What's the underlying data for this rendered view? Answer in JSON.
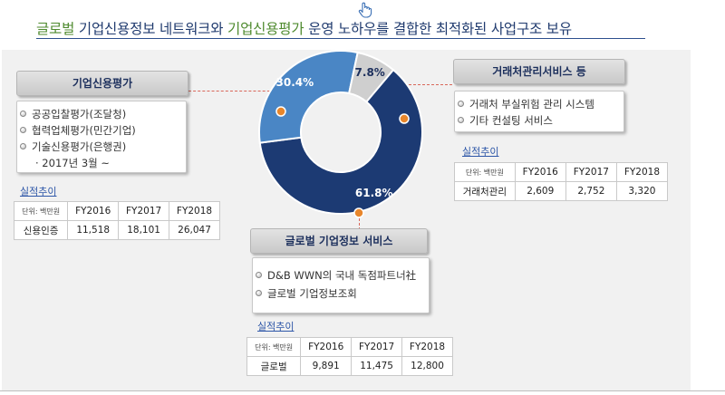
{
  "header": {
    "part1": "글로벌",
    "part2": " 기업신용정보 네트워크와 ",
    "part3": "기업신용평가",
    "part4": " 운영 노하우를 결합한 최적화된 사업구조 보유"
  },
  "colors": {
    "slice_credit": "#1c3a73",
    "slice_global": "#4a86c5",
    "slice_trade": "#cfcfcf",
    "highlight": "#4e8a2e",
    "connector": "#d9675a"
  },
  "chart_data": {
    "type": "pie",
    "slices": [
      {
        "label": "61.8%",
        "value": 61.8,
        "segment": "credit"
      },
      {
        "label": "30.4%",
        "value": 30.4,
        "segment": "global"
      },
      {
        "label": "7.8%",
        "value": 7.8,
        "segment": "trade"
      }
    ]
  },
  "credit": {
    "title": "기업신용평가",
    "items": [
      "공공입찰평가(조달청)",
      "협력업체평가(민간기업)",
      "기술신용평가(은행권)"
    ],
    "sub": "· 2017년 3월 ~",
    "perf_label": "실적추이",
    "table": {
      "unit": "단위: 백만원",
      "years": [
        "FY2016",
        "FY2017",
        "FY2018"
      ],
      "row_label": "신용인증",
      "values": [
        "11,518",
        "18,101",
        "26,047"
      ]
    }
  },
  "trade": {
    "title": "거래처관리서비스 등",
    "items": [
      "거래처 부실위험 관리 시스템",
      "기타 컨설팅 서비스"
    ],
    "perf_label": "실적추이",
    "table": {
      "unit": "단위: 백만원",
      "years": [
        "FY2016",
        "FY2017",
        "FY2018"
      ],
      "row_label": "거래처관리",
      "values": [
        "2,609",
        "2,752",
        "3,320"
      ]
    }
  },
  "global": {
    "title": "글로벌 기업정보 서비스",
    "items": [
      "D&B WWN의 국내 독점파트너社",
      "글로벌 기업정보조회"
    ],
    "perf_label": "실적추이",
    "table": {
      "unit": "단위: 백만원",
      "years": [
        "FY2016",
        "FY2017",
        "FY2018"
      ],
      "row_label": "글로벌",
      "values": [
        "9,891",
        "11,475",
        "12,800"
      ]
    }
  }
}
